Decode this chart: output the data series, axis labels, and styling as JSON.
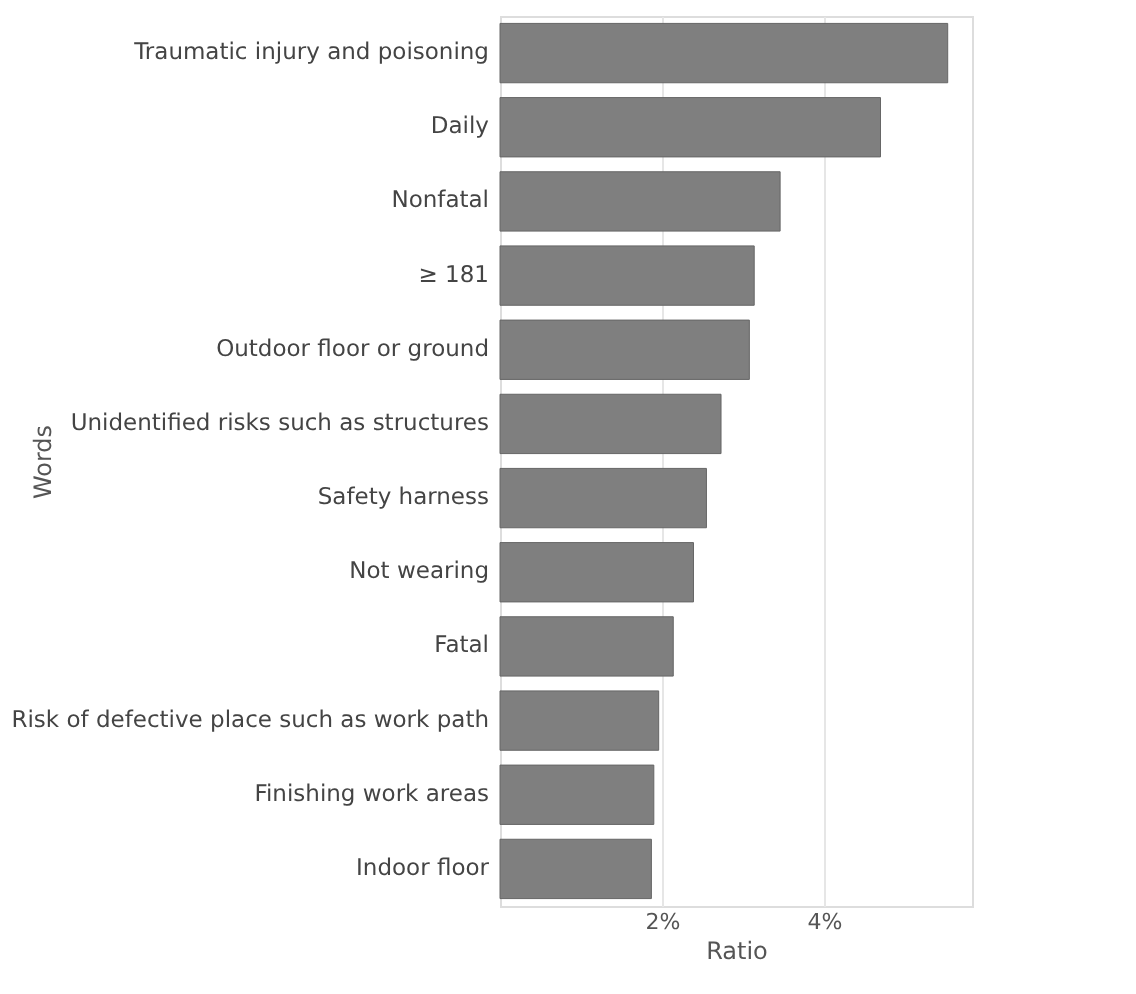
{
  "chart_data": {
    "type": "bar",
    "orientation": "horizontal",
    "xlabel": "Ratio",
    "ylabel": "Words",
    "categories": [
      "Traumatic injury and poisoning",
      "Daily",
      "Nonfatal",
      "≥ 181",
      "Outdoor floor or ground",
      "Unidentified risks such as structures",
      "Safety harness",
      "Not wearing",
      "Fatal",
      "Risk of defective place such as work path",
      "Finishing work areas",
      "Indoor floor"
    ],
    "values": [
      5.53,
      4.7,
      3.46,
      3.14,
      3.08,
      2.73,
      2.55,
      2.39,
      2.14,
      1.96,
      1.9,
      1.87
    ],
    "color": "#7f7f7f",
    "xlim": [
      0,
      5.83
    ],
    "xticks": [
      {
        "value": 2,
        "label": "2%"
      },
      {
        "value": 4,
        "label": "4%"
      }
    ],
    "grid": "x"
  }
}
